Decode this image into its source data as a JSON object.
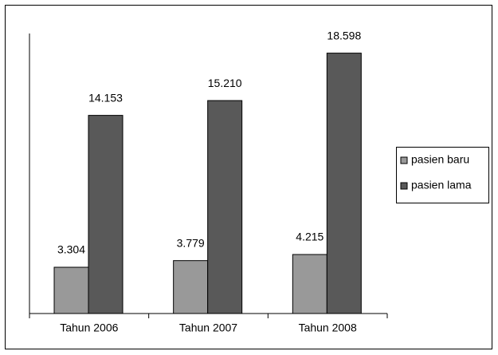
{
  "chart_data": {
    "type": "bar",
    "categories": [
      "Tahun 2006",
      "Tahun 2007",
      "Tahun 2008"
    ],
    "series": [
      {
        "name": "pasien baru",
        "color": "#999999",
        "values": [
          3304,
          3779,
          4215
        ],
        "value_labels": [
          "3.304",
          "3.779",
          "4.215"
        ]
      },
      {
        "name": "pasien lama",
        "color": "#595959",
        "values": [
          14153,
          15210,
          18598
        ],
        "value_labels": [
          "14.153",
          "15.210",
          "18.598"
        ]
      }
    ],
    "ylim": [
      0,
      20000
    ],
    "grid": false,
    "legend": "right"
  }
}
